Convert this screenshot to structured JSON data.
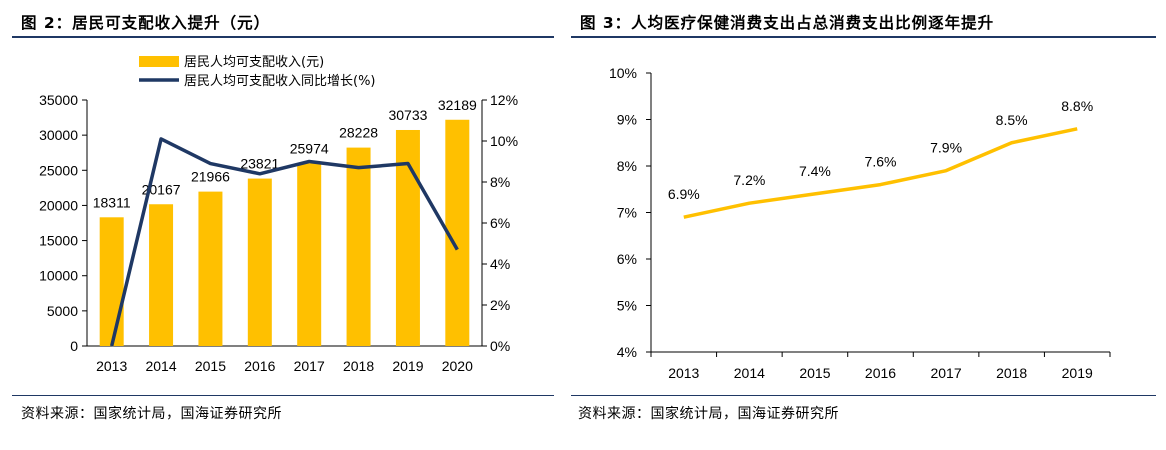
{
  "figure2": {
    "title": "图 2：居民可支配收入提升（元）",
    "source": "资料来源：国家统计局，国海证券研究所"
  },
  "figure3": {
    "title": "图 3：人均医疗保健消费支出占总消费支出比例逐年提升",
    "source": "资料来源：国家统计局，国海证券研究所"
  },
  "colors": {
    "bar": "#FFC000",
    "line_left": "#1F3864",
    "line_right": "#FFC000",
    "rule": "#1F3864"
  },
  "chart_data": [
    {
      "type": "bar",
      "categories": [
        "2013",
        "2014",
        "2015",
        "2016",
        "2017",
        "2018",
        "2019",
        "2020"
      ],
      "series": [
        {
          "name": "居民人均可支配收入(元)",
          "type": "bar",
          "axis": "left",
          "values": [
            18311,
            20167,
            21966,
            23821,
            25974,
            28228,
            30733,
            32189
          ],
          "data_labels": [
            "18311",
            "20167",
            "21966",
            "23821",
            "25974",
            "28228",
            "30733",
            "32189"
          ]
        },
        {
          "name": "居民人均可支配收入同比增长(%)",
          "type": "line",
          "axis": "right",
          "values": [
            0,
            10.1,
            8.9,
            8.4,
            9.0,
            8.7,
            8.9,
            4.7
          ]
        }
      ],
      "ylim": [
        0,
        35000
      ],
      "yticks": [
        "0",
        "5000",
        "10000",
        "15000",
        "20000",
        "25000",
        "30000",
        "35000"
      ],
      "y2lim": [
        0,
        12
      ],
      "y2ticks": [
        "0%",
        "2%",
        "4%",
        "6%",
        "8%",
        "10%",
        "12%"
      ],
      "legend": "top-left",
      "grid": false
    },
    {
      "type": "line",
      "categories": [
        "2013",
        "2014",
        "2015",
        "2016",
        "2017",
        "2018",
        "2019"
      ],
      "series": [
        {
          "values": [
            6.9,
            7.2,
            7.4,
            7.6,
            7.9,
            8.5,
            8.8
          ],
          "data_labels": [
            "6.9%",
            "7.2%",
            "7.4%",
            "7.6%",
            "7.9%",
            "8.5%",
            "8.8%"
          ]
        }
      ],
      "ylim": [
        4,
        10
      ],
      "yticks": [
        "4%",
        "5%",
        "6%",
        "7%",
        "8%",
        "9%",
        "10%"
      ],
      "grid": false
    }
  ]
}
